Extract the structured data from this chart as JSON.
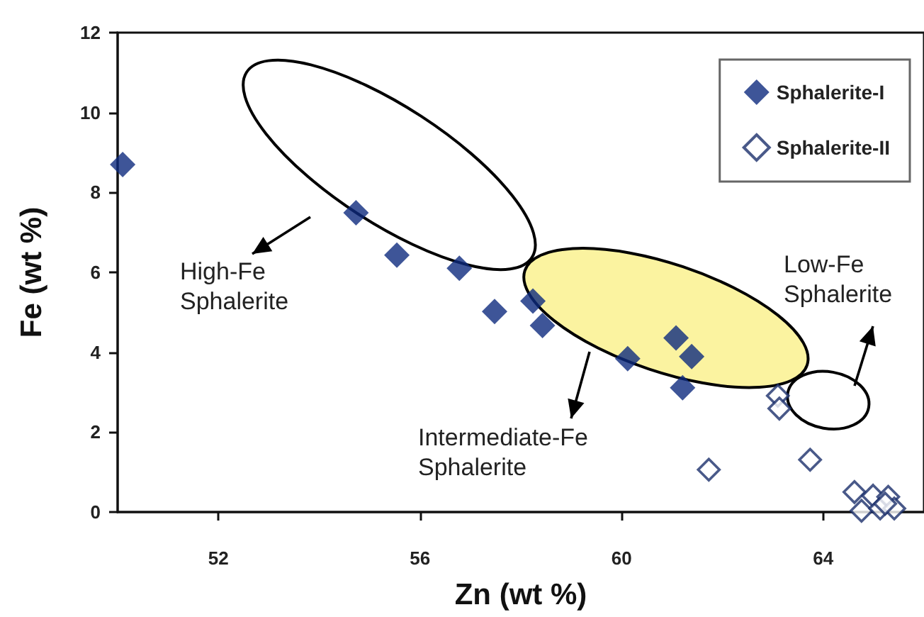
{
  "chart_data": {
    "type": "scatter",
    "xlabel": "Zn (wt %)",
    "ylabel": "Fe (wt %)",
    "xlim": [
      50,
      66
    ],
    "xticks": [
      52,
      56,
      60,
      64
    ],
    "ylim": [
      0,
      12
    ],
    "yticks": [
      0,
      2,
      4,
      6,
      8,
      10,
      12
    ],
    "grid": false,
    "legend": "top right",
    "marker": "diamond",
    "series": [
      {
        "name": "Sphalerite-I",
        "color": "#0e2a7e",
        "x": [
          50.1,
          54.73,
          55.54,
          56.78,
          57.48,
          58.24,
          58.43,
          60.12,
          61.08,
          61.39,
          61.21
        ],
        "values": [
          8.7,
          7.49,
          6.43,
          6.1,
          5.02,
          5.28,
          4.67,
          3.84,
          4.36,
          3.89,
          3.11
        ]
      },
      {
        "name": "Sphalerite-II",
        "color": "#1b2f6b",
        "x": [
          63.1,
          63.13,
          61.73,
          63.74,
          64.62,
          64.76,
          64.99,
          65.13,
          65.29,
          65.41,
          65.23
        ],
        "values": [
          2.91,
          2.59,
          1.06,
          1.31,
          0.5,
          0.03,
          0.41,
          0.09,
          0.38,
          0.09,
          0.21
        ]
      }
    ],
    "annotations": [
      "High-Fe\nSphalerite",
      "Intermediate-Fe\nSphalerite",
      "Low-Fe\nSphalerite"
    ]
  }
}
